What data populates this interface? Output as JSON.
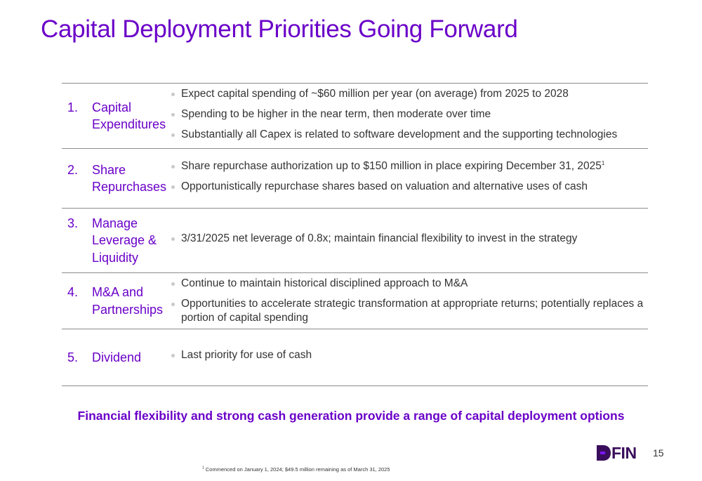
{
  "slide": {
    "title": "Capital Deployment Priorities Going Forward",
    "priorities": [
      {
        "number": "1.",
        "label": "Capital\nExpenditures",
        "points": [
          "Expect capital spending of ~$60 million per year (on average) from 2025 to 2028",
          "Spending to be higher in the near term, then moderate over time",
          "Substantially all Capex is related to software development and the supporting technologies"
        ]
      },
      {
        "number": "2.",
        "label": "Share\nRepurchases",
        "points": [
          "Share repurchase authorization up to $150 million in place expiring December 31, 2025",
          "Opportunistically repurchase shares based on valuation and alternative uses of cash"
        ],
        "footnote_ref": "1"
      },
      {
        "number": "3.",
        "label": "Manage\nLeverage &\nLiquidity",
        "points": [
          "3/31/2025 net leverage of 0.8x; maintain financial flexibility to invest in the strategy"
        ]
      },
      {
        "number": "4.",
        "label": "M&A and\nPartnerships",
        "points": [
          "Continue to maintain historical disciplined approach to M&A",
          "Opportunities to accelerate strategic transformation at appropriate returns; potentially replaces a portion of capital spending"
        ]
      },
      {
        "number": "5.",
        "label": "Dividend",
        "points": [
          "Last priority for use of cash"
        ]
      }
    ],
    "tagline": "Financial flexibility and strong cash generation provide a range of capital deployment options",
    "logo_text": "DFIN",
    "page_number": "15",
    "footnote": {
      "marker": "1",
      "text": "Commenced on January 1, 2024; $49.5 million remaining as of March 31, 2025"
    }
  },
  "colors": {
    "accent_purple": "#6a00c8",
    "logo_dark": "#3a0d5c",
    "logo_accent": "#7b16ff",
    "body_text": "#333333",
    "rule_gray": "#8c8c8c"
  },
  "icons": [
    "dfin-logo-icon",
    "bullet-dot-icon"
  ]
}
